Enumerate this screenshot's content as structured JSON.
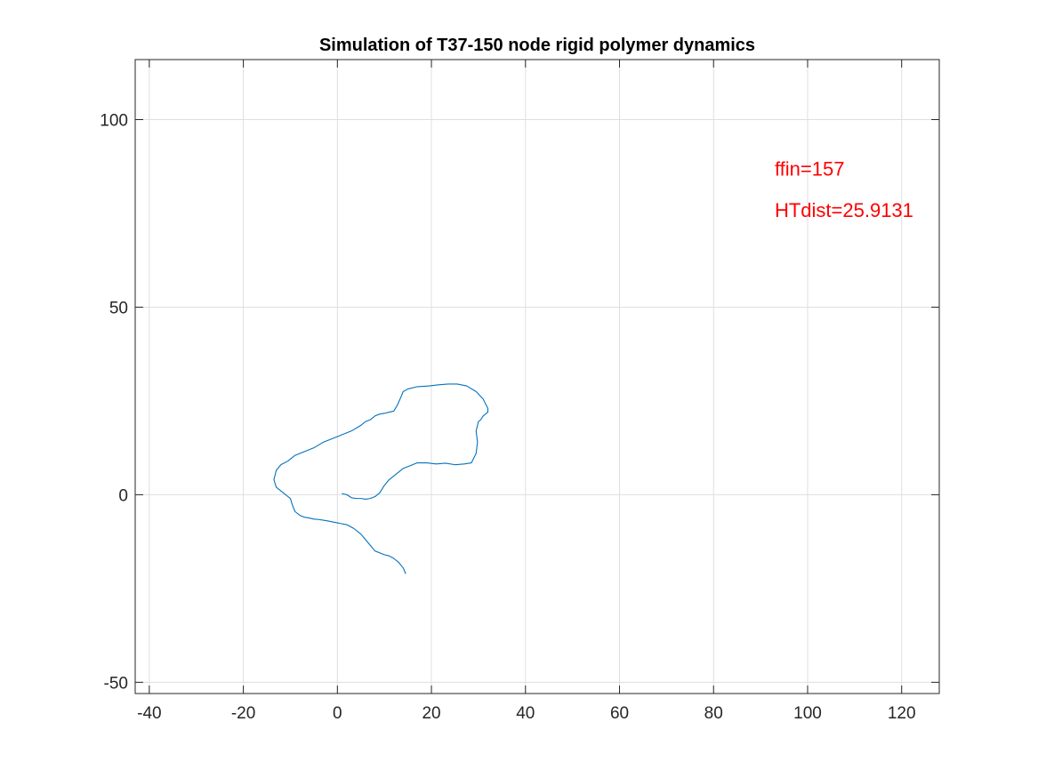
{
  "chart_data": {
    "type": "line",
    "title": "Simulation of T37-150 node rigid polymer dynamics",
    "xlabel": "",
    "ylabel": "",
    "xlim": [
      -43,
      128
    ],
    "ylim": [
      -53,
      116
    ],
    "xticks": [
      -40,
      -20,
      0,
      20,
      40,
      60,
      80,
      100,
      120
    ],
    "yticks": [
      -50,
      0,
      50,
      100
    ],
    "grid": true,
    "box": true,
    "series": [
      {
        "color": "#0072BD",
        "x": [
          1,
          2,
          3,
          4,
          5,
          6,
          7,
          8,
          9,
          10,
          11,
          12,
          13,
          14,
          15,
          17,
          19,
          21,
          23,
          25,
          27,
          28.5,
          29.5,
          29.8,
          29.5,
          30,
          30.5,
          31,
          32,
          32,
          31,
          29.5,
          27.5,
          25.5,
          23.5,
          21.5,
          19.5,
          17,
          15,
          14,
          13.5,
          12.8,
          12,
          11,
          10,
          9,
          8,
          7,
          6,
          5,
          3,
          1,
          -1,
          -3,
          -5,
          -7,
          -9,
          -10.5,
          -12,
          -13,
          -13.5,
          -13,
          -12,
          -11,
          -10,
          -9.5,
          -9,
          -8,
          -7,
          -6,
          -5,
          -4,
          -3,
          -2,
          0,
          2,
          3.5,
          5,
          6,
          7,
          8,
          9,
          10,
          11,
          12,
          13,
          14,
          14.5
        ],
        "y": [
          0.3,
          0,
          -0.8,
          -1,
          -1,
          -1.2,
          -1,
          -0.5,
          0.5,
          2.5,
          4,
          5,
          6,
          7,
          7.5,
          8.5,
          8.5,
          8.2,
          8.4,
          8,
          8.2,
          8.5,
          11,
          14,
          17,
          19.5,
          20,
          21,
          22,
          23,
          25.5,
          27.5,
          29,
          29.5,
          29.5,
          29.3,
          29,
          28.8,
          28.2,
          27.5,
          26,
          24,
          22.3,
          22,
          21.7,
          21.5,
          21,
          20,
          19.5,
          18.5,
          17,
          16,
          15,
          14,
          12.5,
          11.5,
          10.5,
          9,
          8,
          6.5,
          4,
          2,
          1,
          0,
          -1,
          -3,
          -4.5,
          -5.5,
          -6,
          -6.2,
          -6.5,
          -6.6,
          -6.8,
          -7,
          -7.5,
          -8,
          -9,
          -10.5,
          -12,
          -13.5,
          -15,
          -15.5,
          -16,
          -16.3,
          -17,
          -18,
          -19.5,
          -21
        ]
      }
    ],
    "annotations": [
      {
        "text": "ffin=157",
        "x": 93,
        "y": 87,
        "color": "#FF0000"
      },
      {
        "text": "HTdist=25.9131",
        "x": 93,
        "y": 76,
        "color": "#FF0000"
      }
    ]
  }
}
